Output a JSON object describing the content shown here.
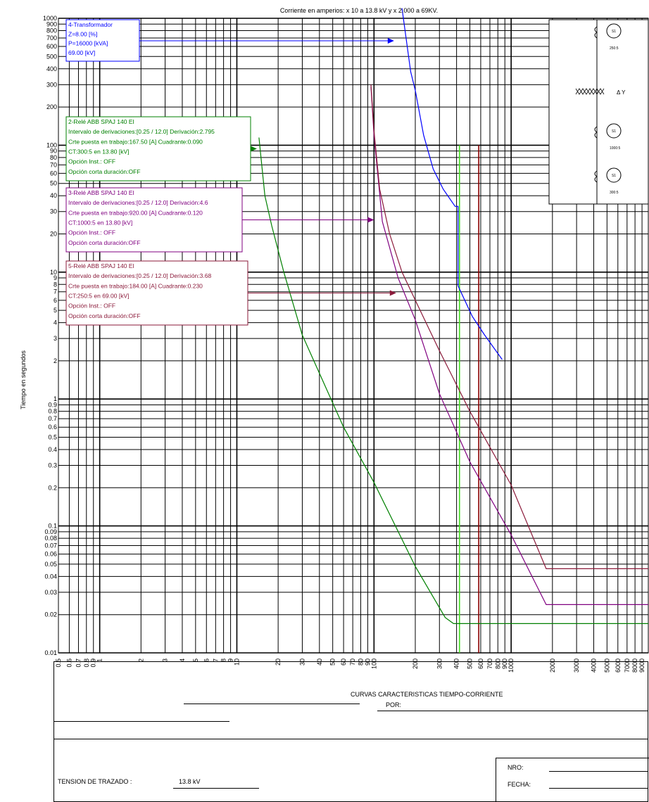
{
  "chart_data": {
    "type": "line",
    "title": "Corriente en amperios: x 10 a 13.8 kV y x 2.000 a 69KV.",
    "ylabel": "Tiempo en segundos",
    "xlabel": "",
    "x_scale": "log",
    "y_scale": "log",
    "xlim": [
      0.5,
      10000
    ],
    "ylim": [
      0.01,
      1000
    ],
    "grid": true,
    "x_ticks": [
      "0.5",
      "0.6",
      "0.7",
      "0.8",
      "0.9",
      "1",
      "2",
      "3",
      "4",
      "5",
      "6",
      "7",
      "8",
      "9",
      "10",
      "20",
      "30",
      "40",
      "50",
      "60",
      "70",
      "80",
      "90",
      "100",
      "200",
      "300",
      "400",
      "500",
      "600",
      "700",
      "800",
      "900",
      "1000",
      "2000",
      "3000",
      "4000",
      "5000",
      "6000",
      "7000",
      "8000",
      "9000"
    ],
    "y_ticks": [
      "0.01",
      "0.02",
      "0.03",
      "0.04",
      "0.05",
      "0.06",
      "0.07",
      "0.08",
      "0.09",
      "0.1",
      "0.2",
      "0.3",
      "0.4",
      "0.5",
      "0.6",
      "0.7",
      "0.8",
      "0.9",
      "1",
      "2",
      "3",
      "4",
      "5",
      "6",
      "7",
      "8",
      "9",
      "10",
      "20",
      "30",
      "40",
      "50",
      "60",
      "70",
      "80",
      "90",
      "100",
      "200",
      "300",
      "400",
      "500",
      "600",
      "700",
      "800",
      "900",
      "1000"
    ],
    "series": [
      {
        "name": "4-Transformador",
        "color": "#0000ff",
        "points": [
          [
            160,
            1200
          ],
          [
            185,
            380
          ],
          [
            200,
            270
          ],
          [
            230,
            120
          ],
          [
            270,
            65
          ],
          [
            320,
            45
          ],
          [
            390,
            33
          ],
          [
            410,
            33
          ],
          [
            410,
            7.8
          ],
          [
            520,
            4.5
          ],
          [
            640,
            3.2
          ],
          [
            860,
            2.05
          ]
        ]
      },
      {
        "name": "2-Relé ABB SPAJ 140 EI",
        "color": "#008000",
        "points": [
          [
            14.5,
            115
          ],
          [
            16,
            40
          ],
          [
            18,
            23
          ],
          [
            22,
            10
          ],
          [
            30,
            3.2
          ],
          [
            60,
            0.6
          ],
          [
            100,
            0.22
          ],
          [
            200,
            0.048
          ],
          [
            330,
            0.019
          ],
          [
            380,
            0.017
          ],
          [
            10000,
            0.017
          ]
        ]
      },
      {
        "name": "3-Relé ABB SPAJ 140 EI",
        "color": "#800080",
        "points": [
          [
            95,
            290
          ],
          [
            100,
            120
          ],
          [
            115,
            25
          ],
          [
            150,
            9
          ],
          [
            200,
            4.2
          ],
          [
            300,
            1.1
          ],
          [
            500,
            0.32
          ],
          [
            1000,
            0.085
          ],
          [
            1800,
            0.024
          ],
          [
            10000,
            0.024
          ]
        ]
      },
      {
        "name": "5-Relé ABB SPAJ 140 EI",
        "color": "#8b1a3a",
        "points": [
          [
            95,
            300
          ],
          [
            100,
            130
          ],
          [
            110,
            45
          ],
          [
            130,
            20
          ],
          [
            160,
            10
          ],
          [
            200,
            6
          ],
          [
            300,
            2.4
          ],
          [
            500,
            0.8
          ],
          [
            1000,
            0.21
          ],
          [
            1800,
            0.046
          ],
          [
            10000,
            0.046
          ]
        ]
      }
    ],
    "vertical_lines": [
      {
        "x": 420,
        "from": 0.01,
        "to": 100,
        "color": "#44dd22"
      },
      {
        "x": 580,
        "from": 0.01,
        "to": 100,
        "color": "#8b0000"
      }
    ],
    "annotations": [
      {
        "color": "#0000ff",
        "lines": [
          "4-Transformador",
          "Z=8.00 [%]",
          "P=16000 [kVA]",
          "69.00 [kV]"
        ],
        "target": [
          140,
          700
        ]
      },
      {
        "color": "#008000",
        "lines": [
          "2-Relé  ABB SPAJ 140 EI",
          "Intervalo de derivaciones:[0.25 / 12.0] Derivación:2.795",
          "Crte puesta en trabajo:167.50 [A] Cuadrante:0.090",
          "CT:300:5 en 13.80 [kV]",
          "Opción Inst.: OFF",
          "Opción corta duración:OFF"
        ],
        "target": [
          14,
          115
        ]
      },
      {
        "color": "#800080",
        "lines": [
          "3-Relé  ABB SPAJ 140 EI",
          "Intervalo de derivaciones:[0.25 / 12.0] Derivación:4.6",
          "Crte puesta en trabajo:920.00 [A] Cuadrante:0.120",
          "CT:1000:5 en 13.80 [kV]",
          "Opción Inst.: OFF",
          "Opción corta duración:OFF"
        ],
        "target": [
          100,
          35
        ]
      },
      {
        "color": "#8b1a3a",
        "lines": [
          "5-Relé  ABB SPAJ 140 EI",
          "Intervalo de derivaciones:[0.25 / 12.0] Derivación:3.68",
          "Crte puesta en trabajo:184.00 [A] Cuadrante:0.230",
          "CT:250:5 en 69.00 [kV]",
          "Opción Inst.: OFF",
          "Opción corta duración:OFF"
        ],
        "target": [
          145,
          11
        ]
      }
    ],
    "diagram": {
      "ct_labels": [
        "250:5",
        "1000:5",
        "300:5"
      ],
      "ct_symbol": "S1",
      "transformer_symbol": "Δ Y"
    }
  },
  "footer": {
    "title": "CURVAS CARACTERISTICAS TIEMPO-CORRIENTE",
    "por_label": "POR:",
    "tension_label": "TENSION DE TRAZADO :",
    "tension_value": "13.8 kV",
    "nro_label": "NRO:",
    "fecha_label": "FECHA:"
  }
}
